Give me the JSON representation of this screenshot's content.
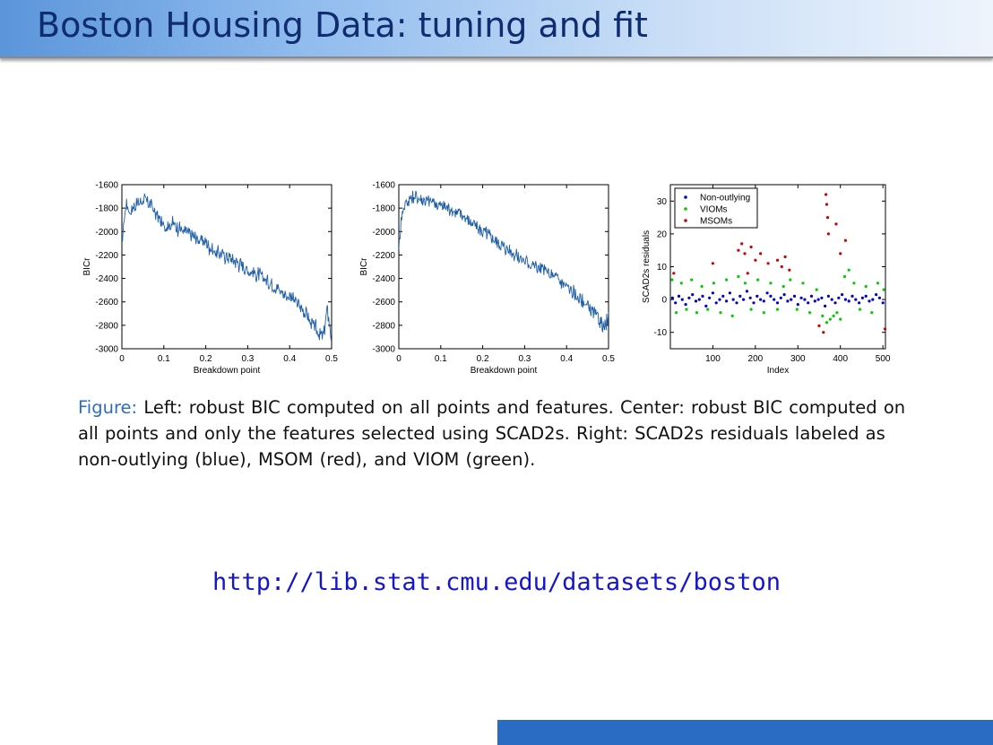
{
  "slide": {
    "title": "Boston Housing Data: tuning and fit",
    "caption_label": "Figure:",
    "caption_text": "Left: robust BIC computed on all points and features. Center: robust BIC computed on all points and only the features selected using SCAD2s. Right: SCAD2s residuals labeled as non-outlying (blue), MSOM (red), and VIOM (green).",
    "url": "http://lib.stat.cmu.edu/datasets/boston"
  },
  "colors": {
    "title_text": "#0f2d6e",
    "line": "#1f5fa8",
    "non_outlying": "#0000cc",
    "viom": "#00cc00",
    "msom": "#cc0000",
    "footer": "#2a6cc4"
  },
  "chart_data": [
    {
      "type": "line",
      "xlabel": "Breakdown point",
      "ylabel": "BICr",
      "xlim": [
        0,
        0.5
      ],
      "ylim": [
        -3000,
        -1600
      ],
      "xticks": [
        "0",
        "0.1",
        "0.2",
        "0.3",
        "0.4",
        "0.5"
      ],
      "yticks": [
        "-1600",
        "-1800",
        "-2000",
        "-2200",
        "-2400",
        "-2600",
        "-2800",
        "-3000"
      ],
      "x": [
        0,
        0.01,
        0.02,
        0.03,
        0.05,
        0.07,
        0.08,
        0.1,
        0.12,
        0.15,
        0.18,
        0.2,
        0.22,
        0.25,
        0.28,
        0.3,
        0.33,
        0.36,
        0.38,
        0.4,
        0.42,
        0.44,
        0.45,
        0.46,
        0.47,
        0.48,
        0.49,
        0.5
      ],
      "y": [
        -2080,
        -1760,
        -1830,
        -1780,
        -1730,
        -1770,
        -1850,
        -1950,
        -1930,
        -2000,
        -2060,
        -2090,
        -2170,
        -2210,
        -2270,
        -2330,
        -2380,
        -2450,
        -2510,
        -2560,
        -2620,
        -2700,
        -2780,
        -2820,
        -2870,
        -2900,
        -2660,
        -2930
      ]
    },
    {
      "type": "line",
      "xlabel": "Breakdown point",
      "ylabel": "BICr",
      "xlim": [
        0,
        0.5
      ],
      "ylim": [
        -3000,
        -1600
      ],
      "xticks": [
        "0",
        "0.1",
        "0.2",
        "0.3",
        "0.4",
        "0.5"
      ],
      "yticks": [
        "-1600",
        "-1800",
        "-2000",
        "-2200",
        "-2400",
        "-2600",
        "-2800",
        "-3000"
      ],
      "x": [
        0,
        0.005,
        0.01,
        0.02,
        0.03,
        0.04,
        0.05,
        0.07,
        0.09,
        0.1,
        0.12,
        0.14,
        0.16,
        0.18,
        0.2,
        0.22,
        0.25,
        0.28,
        0.3,
        0.33,
        0.36,
        0.38,
        0.4,
        0.42,
        0.44,
        0.46,
        0.48,
        0.49,
        0.5
      ],
      "y": [
        -2140,
        -1920,
        -1800,
        -1740,
        -1710,
        -1700,
        -1720,
        -1740,
        -1760,
        -1780,
        -1800,
        -1840,
        -1880,
        -1950,
        -2000,
        -2050,
        -2130,
        -2200,
        -2250,
        -2300,
        -2360,
        -2410,
        -2470,
        -2540,
        -2600,
        -2680,
        -2760,
        -2830,
        -2750
      ]
    },
    {
      "type": "scatter",
      "xlabel": "Index",
      "ylabel": "SCAD2s residuals",
      "xlim": [
        0,
        506
      ],
      "ylim": [
        -15,
        35
      ],
      "xticks": [
        "100",
        "200",
        "300",
        "400",
        "500"
      ],
      "yticks": [
        "30",
        "20",
        "10",
        "0",
        "-10"
      ],
      "legend_position": "top-left",
      "series": [
        {
          "name": "Non-outlying",
          "x": [
            5,
            12,
            20,
            28,
            36,
            44,
            52,
            60,
            68,
            76,
            84,
            92,
            100,
            108,
            116,
            124,
            132,
            140,
            148,
            156,
            164,
            172,
            180,
            188,
            196,
            204,
            212,
            220,
            228,
            236,
            244,
            252,
            260,
            268,
            276,
            284,
            292,
            300,
            308,
            316,
            324,
            332,
            340,
            348,
            356,
            364,
            372,
            380,
            388,
            396,
            404,
            412,
            420,
            428,
            436,
            444,
            452,
            460,
            468,
            476,
            484,
            492,
            500
          ],
          "y": [
            0.5,
            -1,
            1,
            0,
            -1.5,
            0.5,
            1.5,
            -0.5,
            0,
            1,
            -2,
            0.5,
            2,
            -1,
            0,
            1,
            -0.5,
            2,
            0,
            -1,
            1,
            0,
            2.5,
            0.5,
            -1,
            1,
            0,
            -0.5,
            2,
            1,
            0,
            -1,
            0.5,
            1.5,
            -0.5,
            0,
            1,
            -1.5,
            0.5,
            0,
            -1,
            1,
            -0.5,
            0,
            0.5,
            -2,
            1,
            0,
            -1,
            0.5,
            1.5,
            0,
            -0.5,
            1,
            0,
            -1,
            0.5,
            1,
            -0.5,
            0,
            1.5,
            0.5,
            -1
          ]
        },
        {
          "name": "VIOMs",
          "x": [
            4,
            14,
            26,
            38,
            50,
            62,
            74,
            88,
            102,
            118,
            132,
            146,
            160,
            176,
            190,
            206,
            220,
            236,
            252,
            266,
            282,
            298,
            312,
            328,
            344,
            358,
            368,
            376,
            384,
            392,
            400,
            410,
            420,
            432,
            446,
            460,
            474,
            488,
            502
          ],
          "y": [
            6,
            -4,
            5,
            -3,
            6,
            -4,
            4,
            -3,
            5,
            -4,
            6,
            -5,
            7,
            5,
            -3,
            6,
            -4,
            5,
            -3,
            4,
            6,
            -3,
            5,
            -4,
            3,
            -5,
            -7,
            -6,
            -5,
            -4,
            -6,
            7,
            9,
            5,
            -3,
            4,
            -4,
            5,
            3
          ]
        },
        {
          "name": "MSOMs",
          "x": [
            8,
            100,
            160,
            168,
            175,
            182,
            190,
            200,
            212,
            230,
            252,
            262,
            270,
            280,
            350,
            360,
            366,
            368,
            370,
            372,
            390,
            400,
            412,
            505
          ],
          "y": [
            8,
            11,
            15,
            17,
            14,
            8,
            16,
            12,
            14,
            11,
            12,
            10,
            13,
            9,
            -8,
            -10,
            32,
            29,
            25,
            20,
            23,
            14,
            18,
            -9
          ]
        }
      ]
    }
  ]
}
